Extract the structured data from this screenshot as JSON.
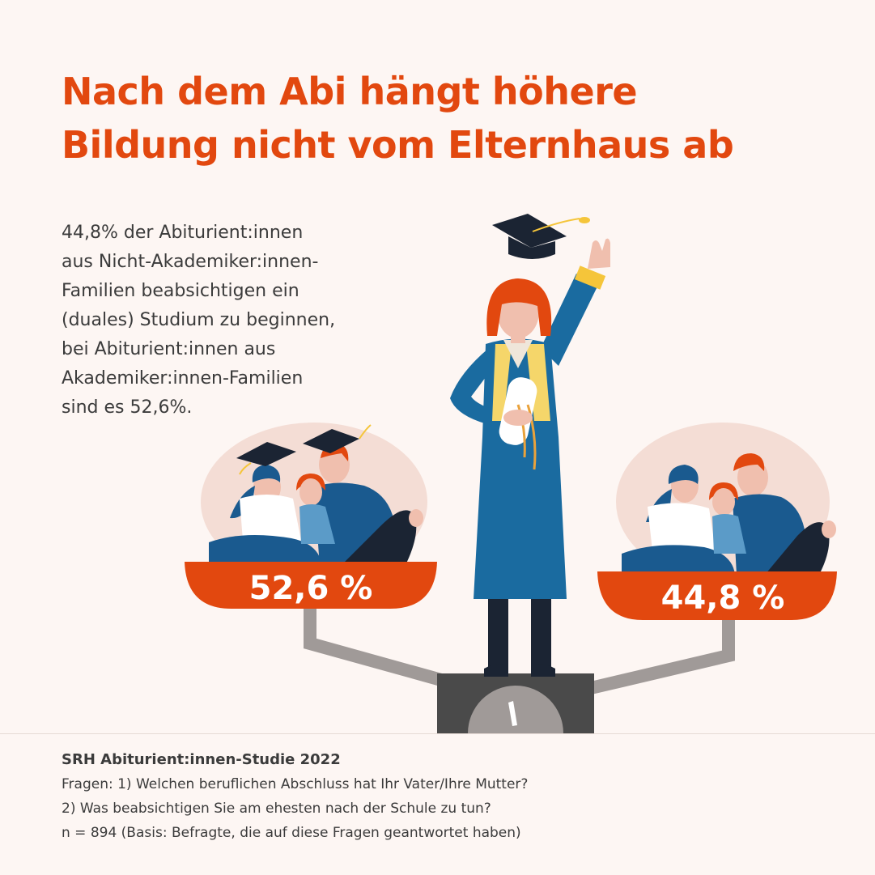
{
  "title": {
    "line1": "Nach dem Abi hängt höhere",
    "line2": "Bildung nicht vom Elternhaus ab"
  },
  "intro": {
    "lines": [
      "44,8% der Abiturient:innen",
      "aus Nicht-Akademiker:innen-",
      "Familien beabsichtigen ein",
      "(duales) Studium zu beginnen,",
      "bei Abiturient:innen aus",
      "Akademiker:innen-Familien",
      "sind es 52,6%."
    ]
  },
  "scale": {
    "left_value": "52,6 %",
    "right_value": "44,8 %"
  },
  "footer": {
    "source": "SRH Abiturient:innen-Studie 2022",
    "question1": "Fragen: 1) Welchen beruflichen Abschluss hat Ihr Vater/Ihre Mutter?",
    "question2": "2) Was beabsichtigen Sie am ehesten nach der Schule zu tun?",
    "basis": "n = 894 (Basis: Befragte, die auf diese Fragen geantwortet haben)"
  },
  "colors": {
    "accent": "#e2480f",
    "background": "#fdf6f3",
    "blue": "#1a6ba0",
    "navy": "#1b2433",
    "yellow": "#f5c53a",
    "gray": "#a09a98"
  }
}
